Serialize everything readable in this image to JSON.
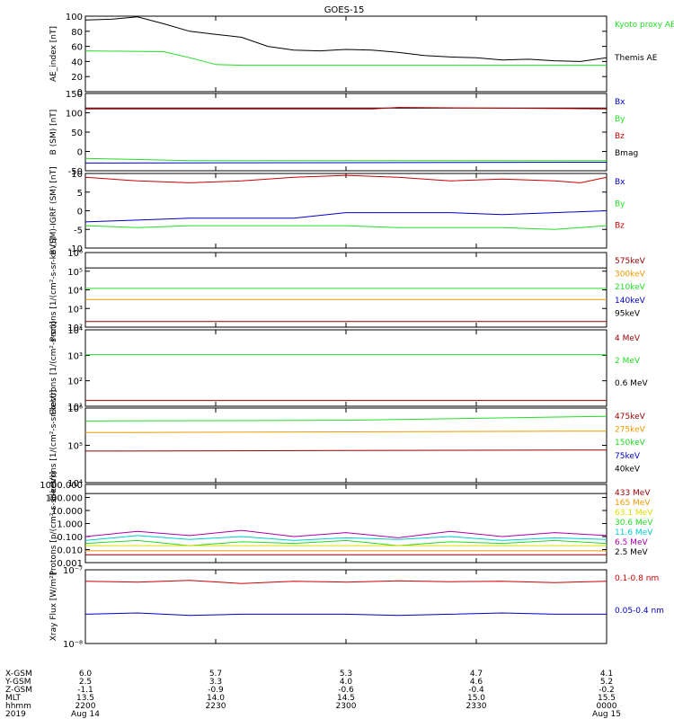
{
  "title": "GOES-15",
  "colors": {
    "black": "#000000",
    "red": "#cc0000",
    "green": "#22dd22",
    "blue": "#0000cc",
    "orange": "#ee9900",
    "yellow": "#dddd00",
    "cyan": "#00cccc",
    "purple": "#aa00aa",
    "brown": "#993300",
    "darkred": "#990000"
  },
  "chart_data": [
    {
      "id": "ae",
      "type": "line",
      "ylabel": "AE_index [nT]",
      "ylim": [
        0,
        100
      ],
      "yticks": [
        "100",
        "80",
        "60",
        "40",
        "20",
        "0"
      ],
      "legend": [
        {
          "label": "Kyoto proxy AE",
          "color": "green"
        },
        {
          "label": "Themis AE",
          "color": "black"
        }
      ],
      "series": [
        {
          "name": "Themis AE",
          "color": "black",
          "x": [
            0,
            0.05,
            0.1,
            0.15,
            0.2,
            0.25,
            0.3,
            0.35,
            0.4,
            0.45,
            0.5,
            0.55,
            0.6,
            0.65,
            0.7,
            0.75,
            0.8,
            0.85,
            0.9,
            0.95,
            1.0
          ],
          "values": [
            95,
            96,
            99,
            90,
            80,
            76,
            72,
            60,
            55,
            54,
            56,
            55,
            52,
            48,
            46,
            45,
            42,
            43,
            41,
            40,
            45
          ]
        },
        {
          "name": "Kyoto proxy AE",
          "color": "green",
          "x": [
            0,
            0.15,
            0.2,
            0.25,
            0.3,
            1.0
          ],
          "values": [
            54,
            53,
            45,
            36,
            35,
            35
          ]
        }
      ]
    },
    {
      "id": "bsm",
      "type": "line",
      "ylabel": "B (SM) [nT]",
      "ylim": [
        -50,
        150
      ],
      "yticks": [
        "150",
        "100",
        "50",
        "0",
        "-50"
      ],
      "legend": [
        {
          "label": "Bx",
          "color": "blue"
        },
        {
          "label": "By",
          "color": "green"
        },
        {
          "label": "Bz",
          "color": "red"
        },
        {
          "label": "Bmag",
          "color": "black"
        }
      ],
      "series": [
        {
          "name": "Bmag",
          "color": "black",
          "x": [
            0,
            1
          ],
          "values": [
            112,
            112
          ]
        },
        {
          "name": "Bz",
          "color": "red",
          "x": [
            0,
            0.55,
            0.6,
            1
          ],
          "values": [
            110,
            110,
            114,
            110
          ]
        },
        {
          "name": "By",
          "color": "green",
          "x": [
            0,
            0.2,
            0.5,
            1
          ],
          "values": [
            -18,
            -24,
            -24,
            -24
          ]
        },
        {
          "name": "Bx",
          "color": "blue",
          "x": [
            0,
            1
          ],
          "values": [
            -30,
            -28
          ]
        }
      ]
    },
    {
      "id": "bsmigrf",
      "type": "line",
      "ylabel": "B (SM)-IGRF (SM) [nT]",
      "ylim": [
        -10,
        10
      ],
      "yticks": [
        "10",
        "5",
        "0",
        "-5",
        "-10"
      ],
      "legend": [
        {
          "label": "Bx",
          "color": "blue"
        },
        {
          "label": "By",
          "color": "green"
        },
        {
          "label": "Bz",
          "color": "red"
        }
      ],
      "series": [
        {
          "name": "Bz",
          "color": "red",
          "x": [
            0,
            0.1,
            0.2,
            0.3,
            0.4,
            0.5,
            0.6,
            0.7,
            0.8,
            0.9,
            0.95,
            1.0
          ],
          "values": [
            9,
            8,
            7.5,
            8,
            9,
            9.5,
            9,
            8,
            8.5,
            8,
            7.5,
            9
          ]
        },
        {
          "name": "Bx",
          "color": "blue",
          "x": [
            0,
            0.1,
            0.2,
            0.3,
            0.4,
            0.5,
            0.6,
            0.7,
            0.8,
            0.9,
            1.0
          ],
          "values": [
            -3,
            -2.5,
            -2,
            -2,
            -2,
            -0.5,
            -0.5,
            -0.5,
            -1,
            -0.5,
            0
          ]
        },
        {
          "name": "By",
          "color": "green",
          "x": [
            0,
            0.1,
            0.2,
            0.3,
            0.4,
            0.5,
            0.6,
            0.7,
            0.8,
            0.9,
            1.0
          ],
          "values": [
            -4,
            -4.5,
            -4,
            -4,
            -4,
            -4,
            -4.5,
            -4.5,
            -4.5,
            -5,
            -4
          ]
        }
      ]
    },
    {
      "id": "protons1",
      "type": "line",
      "log": true,
      "ylabel": "Protons [1/(cm²-s-sr-keV)]",
      "ylim": [
        100,
        1000000
      ],
      "yticks": [
        "10⁶",
        "10⁵",
        "10⁴",
        "10³",
        "10²"
      ],
      "legend": [
        {
          "label": "575keV",
          "color": "darkred"
        },
        {
          "label": "300keV",
          "color": "orange"
        },
        {
          "label": "210keV",
          "color": "green"
        },
        {
          "label": "140keV",
          "color": "blue"
        },
        {
          "label": "95keV",
          "color": "black"
        }
      ],
      "series": [
        {
          "name": "95keV",
          "color": "black",
          "x": [
            0,
            1
          ],
          "values": [
            150000,
            150000
          ]
        },
        {
          "name": "210keV",
          "color": "green",
          "x": [
            0,
            1
          ],
          "values": [
            12000,
            12000
          ]
        },
        {
          "name": "300keV",
          "color": "orange",
          "x": [
            0,
            1
          ],
          "values": [
            3000,
            3000
          ]
        },
        {
          "name": "575keV",
          "color": "darkred",
          "x": [
            0,
            1
          ],
          "values": [
            200,
            200
          ]
        }
      ]
    },
    {
      "id": "electrons1",
      "type": "line",
      "log": true,
      "ylabel": "Electrons [1/(cm²-s-sr)]",
      "ylim": [
        10,
        100000
      ],
      "yticks": [
        "10⁴",
        "10³",
        "10²",
        "10¹"
      ],
      "legend": [
        {
          "label": "4 MeV",
          "color": "darkred"
        },
        {
          "label": "2 MeV",
          "color": "green"
        },
        {
          "label": "0.6 MeV",
          "color": "black"
        }
      ],
      "series": [
        {
          "name": "2 MeV",
          "color": "green",
          "x": [
            0,
            1
          ],
          "values": [
            5000,
            5000
          ]
        },
        {
          "name": "4 MeV",
          "color": "darkred",
          "x": [
            0,
            1
          ],
          "values": [
            20,
            20
          ]
        }
      ]
    },
    {
      "id": "electrons2",
      "type": "line",
      "log": true,
      "ylabel": "Electrons [1/(cm²-s-sr-keV)]",
      "ylim": [
        10000,
        1000000
      ],
      "yticks": [
        "10⁶",
        "10⁵",
        "10⁴"
      ],
      "legend": [
        {
          "label": "475keV",
          "color": "darkred"
        },
        {
          "label": "275keV",
          "color": "orange"
        },
        {
          "label": "150keV",
          "color": "green"
        },
        {
          "label": "75keV",
          "color": "blue"
        },
        {
          "label": "40keV",
          "color": "black"
        }
      ],
      "series": [
        {
          "name": "150keV",
          "color": "green",
          "x": [
            0,
            0.5,
            1
          ],
          "values": [
            450000,
            470000,
            600000
          ]
        },
        {
          "name": "275keV",
          "color": "orange",
          "x": [
            0,
            1
          ],
          "values": [
            220000,
            240000
          ]
        },
        {
          "name": "475keV",
          "color": "darkred",
          "x": [
            0,
            1
          ],
          "values": [
            70000,
            75000
          ]
        }
      ]
    },
    {
      "id": "protons2",
      "type": "line",
      "log": true,
      "ylabel": "Protons [p/(cm²-s-sr-keV)]",
      "ylim": [
        0.001,
        1000
      ],
      "yticks": [
        "1000.000",
        "100.000",
        "10.000",
        "1.000",
        "0.100",
        "0.010",
        "0.001"
      ],
      "legend": [
        {
          "label": "433 MeV",
          "color": "darkred"
        },
        {
          "label": "165 MeV",
          "color": "orange"
        },
        {
          "label": "63.1 MeV",
          "color": "yellow"
        },
        {
          "label": "30.6 MeV",
          "color": "green"
        },
        {
          "label": "11.6 MeV",
          "color": "cyan"
        },
        {
          "label": "6.5 MeV",
          "color": "purple"
        },
        {
          "label": "2.5 MeV",
          "color": "black"
        }
      ],
      "series": [
        {
          "name": "2.5 MeV",
          "color": "black",
          "x": [
            0,
            1
          ],
          "values": [
            200,
            200
          ]
        },
        {
          "name": "6.5 MeV",
          "color": "purple",
          "x": [
            0,
            0.1,
            0.2,
            0.3,
            0.4,
            0.5,
            0.6,
            0.7,
            0.8,
            0.9,
            1.0
          ],
          "values": [
            0.1,
            0.25,
            0.12,
            0.3,
            0.1,
            0.2,
            0.08,
            0.25,
            0.1,
            0.2,
            0.12
          ]
        },
        {
          "name": "11.6 MeV",
          "color": "cyan",
          "x": [
            0,
            0.1,
            0.2,
            0.3,
            0.4,
            0.5,
            0.6,
            0.7,
            0.8,
            0.9,
            1.0
          ],
          "values": [
            0.05,
            0.12,
            0.06,
            0.1,
            0.05,
            0.08,
            0.06,
            0.1,
            0.05,
            0.08,
            0.06
          ]
        },
        {
          "name": "30.6 MeV",
          "color": "green",
          "x": [
            0,
            0.1,
            0.2,
            0.3,
            0.4,
            0.5,
            0.6,
            0.7,
            0.8,
            0.9,
            1.0
          ],
          "values": [
            0.03,
            0.05,
            0.02,
            0.04,
            0.03,
            0.05,
            0.02,
            0.04,
            0.03,
            0.05,
            0.03
          ]
        },
        {
          "name": "63.1 MeV",
          "color": "yellow",
          "x": [
            0,
            1
          ],
          "values": [
            0.02,
            0.02
          ]
        },
        {
          "name": "165 MeV",
          "color": "orange",
          "x": [
            0,
            1
          ],
          "values": [
            0.008,
            0.008
          ]
        },
        {
          "name": "433 MeV",
          "color": "darkred",
          "x": [
            0,
            1
          ],
          "values": [
            0.004,
            0.004
          ]
        }
      ]
    },
    {
      "id": "xray",
      "type": "line",
      "log": true,
      "ylabel": "Xray Flux [W/m²]",
      "ylim": [
        1e-08,
        1e-07
      ],
      "yticks": [
        "10⁻⁷",
        "10⁻⁸"
      ],
      "legend": [
        {
          "label": "0.1-0.8 nm",
          "color": "red"
        },
        {
          "label": "0.05-0.4 nm",
          "color": "blue"
        }
      ],
      "series": [
        {
          "name": "0.1-0.8 nm",
          "color": "red",
          "x": [
            0,
            0.1,
            0.2,
            0.3,
            0.4,
            0.5,
            0.6,
            0.7,
            0.8,
            0.9,
            1.0
          ],
          "values": [
            7e-08,
            6.8e-08,
            7.2e-08,
            6.5e-08,
            7e-08,
            6.8e-08,
            7.1e-08,
            6.9e-08,
            7e-08,
            6.7e-08,
            7e-08
          ]
        },
        {
          "name": "0.05-0.4 nm",
          "color": "blue",
          "x": [
            0,
            0.1,
            0.2,
            0.3,
            0.4,
            0.5,
            0.6,
            0.7,
            0.8,
            0.9,
            1.0
          ],
          "values": [
            2.5e-08,
            2.6e-08,
            2.4e-08,
            2.5e-08,
            2.5e-08,
            2.5e-08,
            2.4e-08,
            2.5e-08,
            2.6e-08,
            2.5e-08,
            2.5e-08
          ]
        }
      ]
    }
  ],
  "orbit_table": {
    "labels": [
      "X-GSM",
      "Y-GSM",
      "Z-GSM",
      "MLT",
      "hhmm",
      "2019"
    ],
    "columns": [
      [
        "6.0",
        "2.5",
        "-1.1",
        "13.5",
        "2200",
        "Aug 14"
      ],
      [
        "5.7",
        "3.3",
        "-0.9",
        "14.0",
        "2230",
        ""
      ],
      [
        "5.3",
        "4.0",
        "-0.6",
        "14.5",
        "2300",
        ""
      ],
      [
        "4.7",
        "4.6",
        "-0.4",
        "15.0",
        "2330",
        ""
      ],
      [
        "4.1",
        "5.2",
        "-0.2",
        "15.5",
        "0000",
        "Aug 15"
      ]
    ]
  }
}
